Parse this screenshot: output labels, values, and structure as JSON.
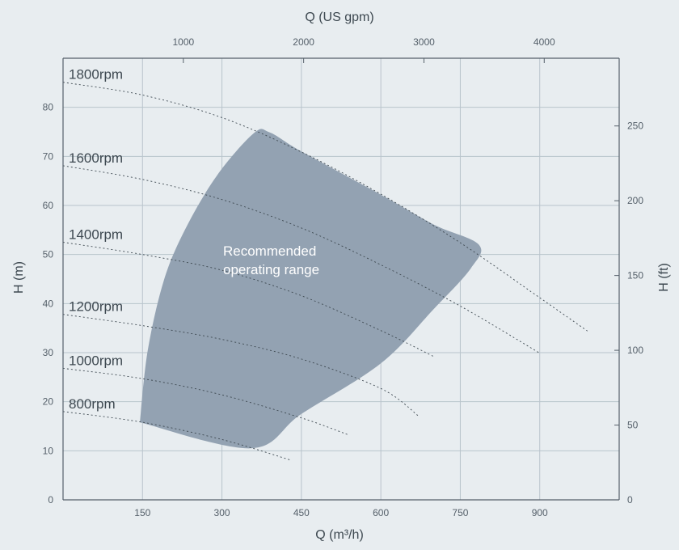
{
  "chart_data": {
    "type": "line",
    "xlabel_bottom": "Q (m³/h)",
    "xlabel_top": "Q (US gpm)",
    "ylabel_left": "H (m)",
    "ylabel_right": "H (ft)",
    "xlim": [
      0,
      1050
    ],
    "ylim": [
      0,
      90
    ],
    "x_ticks": [
      "150",
      "300",
      "450",
      "600",
      "750",
      "900"
    ],
    "x_ticks_top": [
      "1000",
      "2000",
      "3000",
      "4000"
    ],
    "y_ticks": [
      "0",
      "10",
      "20",
      "30",
      "40",
      "50",
      "60",
      "70",
      "80"
    ],
    "y_ticks_right": [
      "0",
      "50",
      "100",
      "150",
      "200",
      "250"
    ],
    "grid": true,
    "curve_color": "#3d4850",
    "region_color": "#93a2b2",
    "background_color": "#e8edf0",
    "series": [
      {
        "name": "1800rpm",
        "x": [
          0,
          150,
          300,
          450,
          600,
          750,
          900,
          990
        ],
        "y": [
          85.1,
          82.5,
          77.9,
          70.9,
          62.3,
          52.4,
          41.2,
          34.4
        ]
      },
      {
        "name": "1600rpm",
        "x": [
          0,
          150,
          300,
          450,
          600,
          750,
          900
        ],
        "y": [
          68.1,
          65.3,
          61.2,
          55.4,
          47.9,
          39.5,
          29.9
        ]
      },
      {
        "name": "1400rpm",
        "x": [
          0,
          150,
          300,
          450,
          600,
          700
        ],
        "y": [
          52.5,
          50.0,
          46.8,
          41.6,
          34.5,
          29.2
        ]
      },
      {
        "name": "1200rpm",
        "x": [
          0,
          150,
          300,
          450,
          600,
          670
        ],
        "y": [
          37.8,
          35.5,
          32.7,
          28.7,
          22.7,
          17.2
        ]
      },
      {
        "name": "1000rpm",
        "x": [
          0,
          150,
          300,
          450,
          540
        ],
        "y": [
          26.8,
          24.7,
          21.4,
          16.7,
          13.2
        ]
      },
      {
        "name": "800rpm",
        "x": [
          0,
          150,
          300,
          430
        ],
        "y": [
          18.0,
          15.8,
          12.3,
          8.1
        ]
      }
    ],
    "region": {
      "label_line1": "Recommended",
      "label_line2": "operating range",
      "x": [
        145,
        160,
        190,
        230,
        290,
        360,
        390,
        450,
        600,
        700,
        785,
        770,
        700,
        600,
        450,
        355,
        145
      ],
      "y": [
        15.8,
        30.5,
        44.6,
        55.0,
        66.0,
        74.7,
        74.9,
        71.0,
        62.2,
        56.1,
        52.0,
        47.2,
        38.9,
        27.8,
        17.5,
        10.5,
        15.8
      ]
    }
  }
}
